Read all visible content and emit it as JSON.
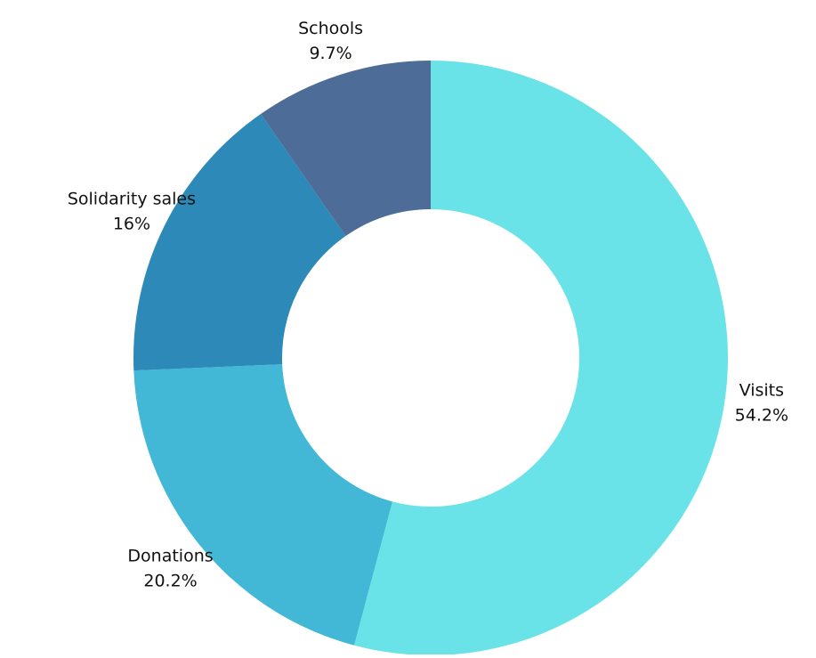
{
  "chart_data": {
    "type": "pie",
    "variant": "donut",
    "title": "",
    "legend": "none",
    "slices": [
      {
        "label": "Visits",
        "value": 54.2,
        "display": "54.2%",
        "color": "#6ae3e8"
      },
      {
        "label": "Donations",
        "value": 20.2,
        "display": "20.2%",
        "color": "#42b8d6"
      },
      {
        "label": "Solidarity sales",
        "value": 16,
        "display": "16%",
        "color": "#2d89b7"
      },
      {
        "label": "Schools",
        "value": 9.7,
        "display": "9.7%",
        "color": "#4e6c98"
      }
    ]
  }
}
